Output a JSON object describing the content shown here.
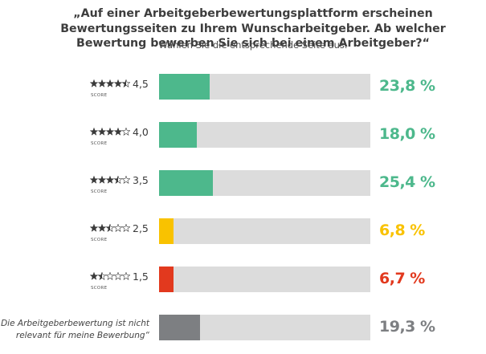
{
  "title": "„Auf einer Arbeitgeberbewertungsplattform erscheinen Bewertungsseiten zu Ihrem Wunscharbeitgeber. Ab welcher Bewertung bewerben Sie sich bei einem Arbeitgeber?“",
  "subtitle": "Wählen Sie die entsprechende Seite aus.",
  "colors": {
    "green": "#4db88c",
    "yellow": "#f9c200",
    "red": "#e2391e",
    "gray": "#7d7f82",
    "track": "#dcdcdc",
    "star": "#3a3a3a"
  },
  "score_word": "SCORE",
  "chart_data": {
    "type": "bar",
    "orientation": "horizontal",
    "unit": "%",
    "xlim": [
      0,
      100
    ],
    "categories": [
      "4,5",
      "4,0",
      "3,5",
      "2,5",
      "1,5",
      "„Die Arbeitgeberbewertung ist nicht relevant für meine Bewerbung“"
    ],
    "stars": [
      4.5,
      4.0,
      3.5,
      2.5,
      1.5,
      null
    ],
    "values": [
      23.8,
      18.0,
      25.4,
      6.8,
      6.7,
      19.3
    ],
    "labels": [
      "23,8 %",
      "18,0 %",
      "25,4 %",
      "6,8 %",
      "6,7 %",
      "19,3 %"
    ],
    "bar_colors": [
      "#4db88c",
      "#4db88c",
      "#4db88c",
      "#f9c200",
      "#e2391e",
      "#7d7f82"
    ],
    "quote_lines": [
      "„Die Arbeitgeberbewertung ist nicht",
      "relevant für meine Bewerbung“"
    ]
  }
}
